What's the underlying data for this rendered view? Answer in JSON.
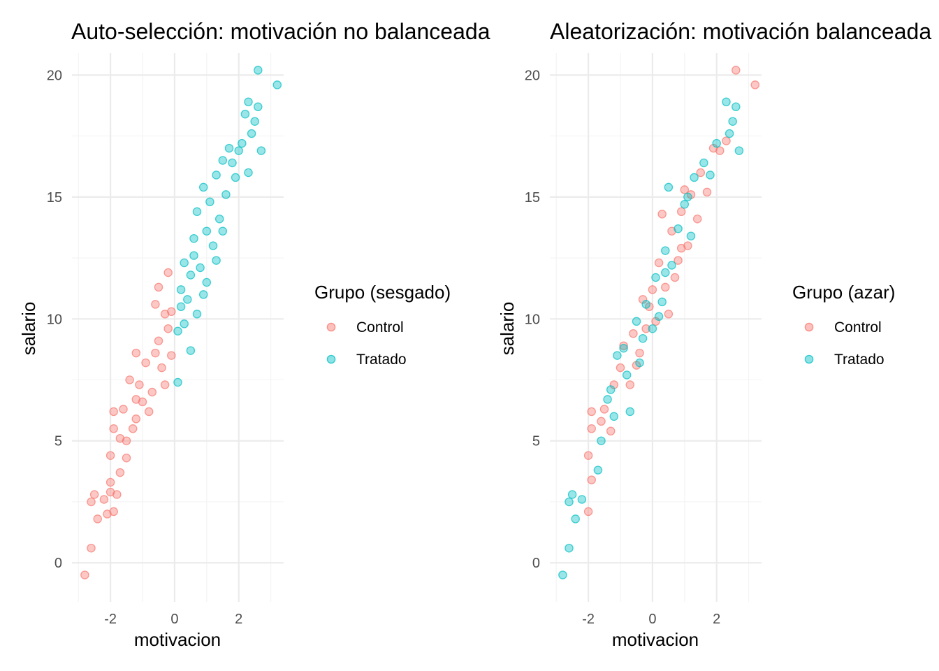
{
  "chart_data": [
    {
      "type": "scatter",
      "title": "Auto-selección: motivación no balanceada",
      "xlabel": "motivacion",
      "ylabel": "salario",
      "xlim": [
        -3.2,
        3.4
      ],
      "ylim": [
        -1.6,
        20.9
      ],
      "x_ticks": [
        -2,
        0,
        2
      ],
      "x_tick_labels": [
        "-2",
        "0",
        "2"
      ],
      "y_ticks": [
        0,
        5,
        10,
        15,
        20
      ],
      "y_tick_labels": [
        "0",
        "5",
        "10",
        "15",
        "20"
      ],
      "grid": true,
      "legend": {
        "title": "Grupo (sesgado)",
        "placement": "right",
        "entries": [
          "Control",
          "Tratado"
        ]
      },
      "colors": {
        "Control": "#F8766D",
        "Tratado": "#00BFC4"
      },
      "series": [
        {
          "name": "Control",
          "assignment": "motivacion < 0",
          "points": [
            [
              -2.8,
              -0.5
            ],
            [
              -2.6,
              0.6
            ],
            [
              -2.6,
              2.5
            ],
            [
              -2.5,
              2.8
            ],
            [
              -2.4,
              1.8
            ],
            [
              -2.2,
              2.6
            ],
            [
              -2.1,
              2.0
            ],
            [
              -2.0,
              2.9
            ],
            [
              -2.0,
              3.3
            ],
            [
              -1.9,
              2.1
            ],
            [
              -1.8,
              2.8
            ],
            [
              -1.7,
              3.7
            ],
            [
              -2.0,
              4.4
            ],
            [
              -1.9,
              5.5
            ],
            [
              -1.9,
              6.2
            ],
            [
              -1.6,
              6.3
            ],
            [
              -1.5,
              5.0
            ],
            [
              -1.3,
              5.5
            ],
            [
              -1.2,
              6.7
            ],
            [
              -1.1,
              7.3
            ],
            [
              -1.0,
              6.6
            ],
            [
              -1.4,
              7.5
            ],
            [
              -1.2,
              8.6
            ],
            [
              -0.9,
              8.2
            ],
            [
              -0.8,
              6.2
            ],
            [
              -0.7,
              7.0
            ],
            [
              -0.6,
              8.6
            ],
            [
              -0.5,
              9.1
            ],
            [
              -0.4,
              8.0
            ],
            [
              -0.3,
              7.3
            ],
            [
              -0.2,
              9.6
            ],
            [
              -0.1,
              8.5
            ],
            [
              -0.3,
              10.2
            ],
            [
              -0.6,
              10.6
            ],
            [
              -0.5,
              11.3
            ],
            [
              -0.2,
              11.9
            ],
            [
              -0.1,
              10.3
            ],
            [
              -1.5,
              4.3
            ],
            [
              -1.7,
              5.1
            ],
            [
              -1.2,
              5.9
            ]
          ]
        },
        {
          "name": "Tratado",
          "assignment": "motivacion >= 0",
          "points": [
            [
              0.1,
              7.4
            ],
            [
              0.1,
              9.5
            ],
            [
              0.2,
              10.5
            ],
            [
              0.2,
              11.2
            ],
            [
              0.3,
              12.3
            ],
            [
              0.4,
              10.8
            ],
            [
              0.5,
              8.7
            ],
            [
              0.5,
              11.8
            ],
            [
              0.6,
              13.3
            ],
            [
              0.6,
              12.6
            ],
            [
              0.7,
              14.4
            ],
            [
              0.7,
              10.2
            ],
            [
              0.8,
              12.1
            ],
            [
              0.9,
              15.4
            ],
            [
              1.0,
              13.6
            ],
            [
              1.0,
              11.5
            ],
            [
              1.1,
              14.8
            ],
            [
              1.2,
              13.0
            ],
            [
              1.3,
              12.4
            ],
            [
              1.3,
              15.9
            ],
            [
              1.4,
              14.1
            ],
            [
              1.5,
              13.6
            ],
            [
              1.5,
              16.5
            ],
            [
              1.6,
              15.1
            ],
            [
              1.7,
              17.0
            ],
            [
              1.8,
              16.4
            ],
            [
              1.9,
              15.8
            ],
            [
              2.0,
              16.9
            ],
            [
              2.1,
              17.2
            ],
            [
              2.2,
              18.4
            ],
            [
              2.3,
              16.0
            ],
            [
              2.3,
              18.9
            ],
            [
              2.4,
              17.6
            ],
            [
              2.5,
              18.1
            ],
            [
              2.6,
              18.7
            ],
            [
              2.6,
              20.2
            ],
            [
              2.7,
              16.9
            ],
            [
              3.2,
              19.6
            ],
            [
              0.3,
              9.8
            ],
            [
              0.9,
              11.0
            ]
          ]
        }
      ]
    },
    {
      "type": "scatter",
      "title": "Aleatorización: motivación balanceada",
      "xlabel": "motivacion",
      "ylabel": "salario",
      "xlim": [
        -3.2,
        3.4
      ],
      "ylim": [
        -1.6,
        20.9
      ],
      "x_ticks": [
        -2,
        0,
        2
      ],
      "x_tick_labels": [
        "-2",
        "0",
        "2"
      ],
      "y_ticks": [
        0,
        5,
        10,
        15,
        20
      ],
      "y_tick_labels": [
        "0",
        "5",
        "10",
        "15",
        "20"
      ],
      "grid": true,
      "legend": {
        "title": "Grupo (azar)",
        "placement": "right",
        "entries": [
          "Control",
          "Tratado"
        ]
      },
      "colors": {
        "Control": "#F8766D",
        "Tratado": "#00BFC4"
      },
      "series": [
        {
          "name": "Control",
          "points": [
            [
              -2.0,
              2.1
            ],
            [
              -1.9,
              3.4
            ],
            [
              -2.0,
              4.4
            ],
            [
              -1.9,
              5.5
            ],
            [
              -1.9,
              6.2
            ],
            [
              -1.5,
              6.3
            ],
            [
              -1.3,
              5.4
            ],
            [
              -1.2,
              7.3
            ],
            [
              -1.0,
              8.0
            ],
            [
              -0.9,
              8.9
            ],
            [
              -0.7,
              7.3
            ],
            [
              -0.6,
              9.4
            ],
            [
              -0.4,
              8.6
            ],
            [
              -0.3,
              10.8
            ],
            [
              -0.2,
              9.6
            ],
            [
              0.0,
              11.2
            ],
            [
              0.1,
              9.9
            ],
            [
              0.2,
              12.3
            ],
            [
              0.4,
              11.3
            ],
            [
              0.5,
              10.2
            ],
            [
              0.6,
              13.6
            ],
            [
              0.8,
              12.4
            ],
            [
              0.9,
              14.4
            ],
            [
              1.1,
              13.0
            ],
            [
              1.2,
              15.1
            ],
            [
              1.4,
              14.1
            ],
            [
              1.5,
              16.0
            ],
            [
              1.7,
              15.2
            ],
            [
              1.9,
              17.0
            ],
            [
              2.1,
              16.9
            ],
            [
              2.3,
              17.3
            ],
            [
              2.6,
              20.2
            ],
            [
              3.2,
              19.6
            ],
            [
              0.3,
              14.3
            ],
            [
              -0.5,
              8.1
            ],
            [
              0.7,
              11.7
            ],
            [
              1.0,
              15.3
            ],
            [
              -1.6,
              5.8
            ],
            [
              -0.1,
              10.5
            ],
            [
              0.9,
              12.9
            ]
          ]
        },
        {
          "name": "Tratado",
          "points": [
            [
              -2.8,
              -0.5
            ],
            [
              -2.6,
              0.6
            ],
            [
              -2.6,
              2.5
            ],
            [
              -2.5,
              2.8
            ],
            [
              -2.4,
              1.8
            ],
            [
              -2.2,
              2.6
            ],
            [
              -1.7,
              3.8
            ],
            [
              -1.6,
              5.0
            ],
            [
              -1.4,
              6.7
            ],
            [
              -1.2,
              6.0
            ],
            [
              -1.1,
              8.5
            ],
            [
              -0.8,
              7.7
            ],
            [
              -0.7,
              6.2
            ],
            [
              -0.5,
              9.9
            ],
            [
              -0.4,
              8.2
            ],
            [
              -0.2,
              10.6
            ],
            [
              0.0,
              9.6
            ],
            [
              0.1,
              11.7
            ],
            [
              0.3,
              10.7
            ],
            [
              0.4,
              12.8
            ],
            [
              0.5,
              15.4
            ],
            [
              0.6,
              12.2
            ],
            [
              0.8,
              13.7
            ],
            [
              1.0,
              14.7
            ],
            [
              1.2,
              13.4
            ],
            [
              1.3,
              15.8
            ],
            [
              1.6,
              16.4
            ],
            [
              1.8,
              15.9
            ],
            [
              2.0,
              17.2
            ],
            [
              2.3,
              18.9
            ],
            [
              2.4,
              17.6
            ],
            [
              2.5,
              18.1
            ],
            [
              2.6,
              18.7
            ],
            [
              2.7,
              16.9
            ],
            [
              0.2,
              10.1
            ],
            [
              -0.3,
              9.2
            ],
            [
              1.1,
              15.0
            ],
            [
              -0.9,
              8.8
            ],
            [
              0.4,
              11.9
            ],
            [
              -1.3,
              7.1
            ]
          ]
        }
      ]
    }
  ]
}
